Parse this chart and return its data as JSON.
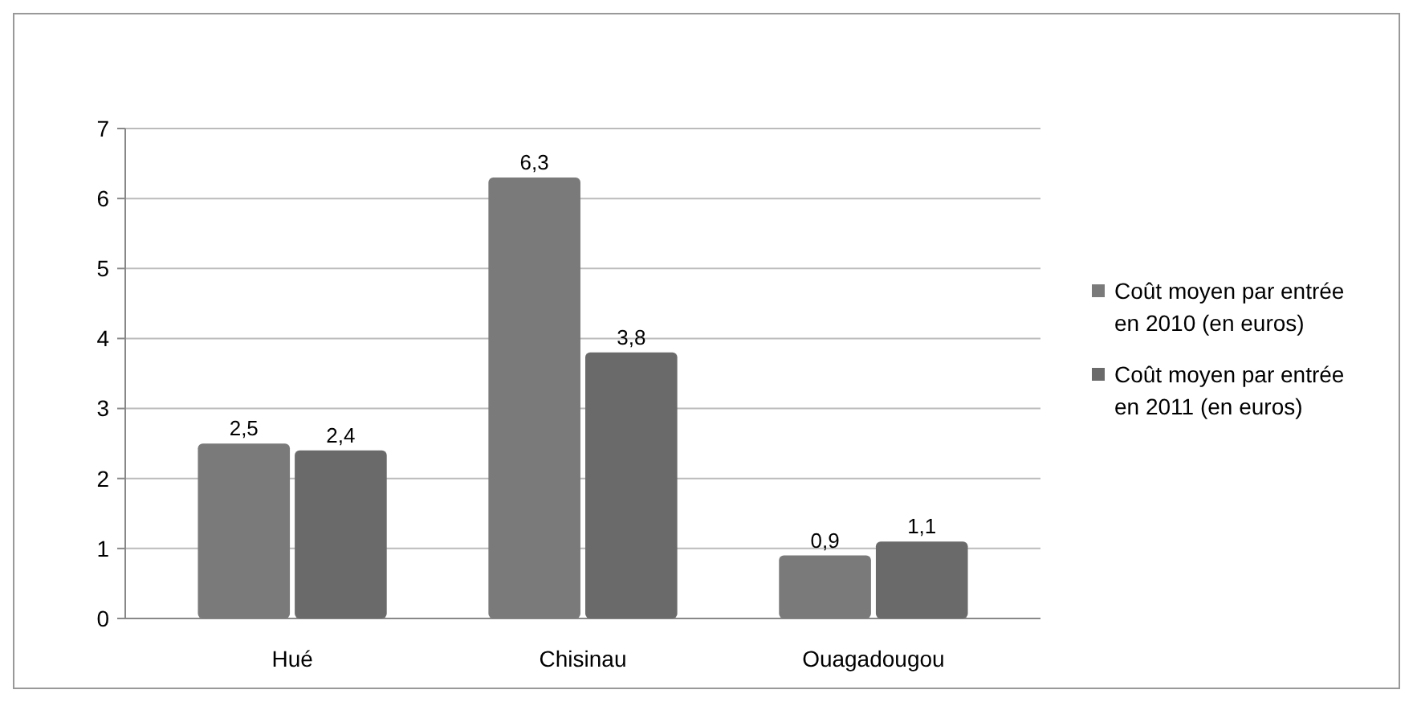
{
  "chart_data": {
    "type": "bar",
    "categories": [
      "Hué",
      "Chisinau",
      "Ouagadougou"
    ],
    "series": [
      {
        "name": "Coût moyen par entrée en 2010 (en euros)",
        "color": "#7a7a7a",
        "values": [
          2.5,
          6.3,
          0.9
        ],
        "value_labels": [
          "2,5",
          "6,3",
          "0,9"
        ]
      },
      {
        "name": "Coût moyen par entrée en 2011 (en euros)",
        "color": "#6a6a6a",
        "values": [
          2.4,
          3.8,
          1.1
        ],
        "value_labels": [
          "2,4",
          "3,8",
          "1,1"
        ]
      }
    ],
    "ylim": [
      0,
      7
    ],
    "yticks": [
      0,
      1,
      2,
      3,
      4,
      5,
      6,
      7
    ],
    "grid": "y",
    "legend": "right"
  }
}
